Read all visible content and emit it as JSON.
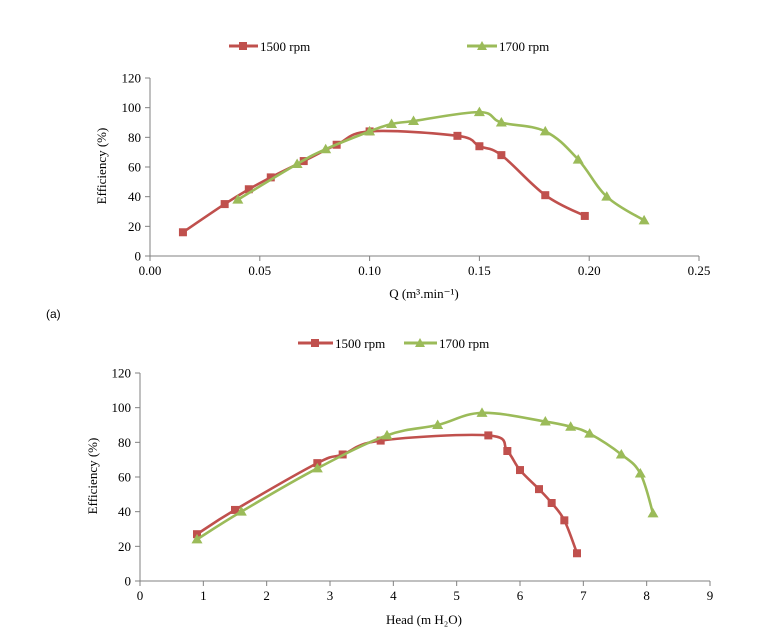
{
  "colors": {
    "series_1500": "#C0504D",
    "series_1700": "#9BBB59",
    "axis": "#808080"
  },
  "chart_data": [
    {
      "type": "line",
      "panel_label": "(a)",
      "title": "",
      "xlabel": "Q (m³.min⁻¹)",
      "ylabel": "Efficiency (%)",
      "xlim": [
        0,
        0.25
      ],
      "ylim": [
        0,
        120
      ],
      "xticks": [
        0,
        0.05,
        0.1,
        0.15,
        0.2,
        0.25
      ],
      "xtick_labels": [
        "0.00",
        "0.05",
        "0.10",
        "0.15",
        "0.20",
        "0.25"
      ],
      "yticks": [
        0,
        20,
        40,
        60,
        80,
        100,
        120
      ],
      "ytick_labels": [
        "0",
        "20",
        "40",
        "60",
        "80",
        "100",
        "120"
      ],
      "legend": "top",
      "series": [
        {
          "name": "1500 rpm",
          "marker": "square",
          "color": "#C0504D",
          "x": [
            0.015,
            0.034,
            0.045,
            0.055,
            0.07,
            0.085,
            0.1,
            0.14,
            0.15,
            0.16,
            0.18,
            0.198
          ],
          "y": [
            16,
            35,
            45,
            53,
            64,
            75,
            84,
            81,
            74,
            68,
            41,
            27
          ]
        },
        {
          "name": "1700 rpm",
          "marker": "triangle",
          "color": "#9BBB59",
          "x": [
            0.04,
            0.067,
            0.08,
            0.1,
            0.11,
            0.12,
            0.15,
            0.16,
            0.18,
            0.195,
            0.208,
            0.225
          ],
          "y": [
            38,
            62,
            72,
            84,
            89,
            91,
            97,
            90,
            84,
            65,
            40,
            24
          ]
        }
      ]
    },
    {
      "type": "line",
      "title": "",
      "xlabel": "Head (m H₂O)",
      "ylabel": "Efficiency (%)",
      "xlim": [
        0,
        9
      ],
      "ylim": [
        0,
        120
      ],
      "xticks": [
        0,
        1,
        2,
        3,
        4,
        5,
        6,
        7,
        8,
        9
      ],
      "xtick_labels": [
        "0",
        "1",
        "2",
        "3",
        "4",
        "5",
        "6",
        "7",
        "8",
        "9"
      ],
      "yticks": [
        0,
        20,
        40,
        60,
        80,
        100,
        120
      ],
      "ytick_labels": [
        "0",
        "20",
        "40",
        "60",
        "80",
        "100",
        "120"
      ],
      "legend": "top",
      "series": [
        {
          "name": "1500 rpm",
          "marker": "square",
          "color": "#C0504D",
          "x": [
            0.9,
            1.5,
            2.8,
            3.2,
            3.8,
            5.5,
            5.8,
            6.0,
            6.3,
            6.5,
            6.7,
            6.9
          ],
          "y": [
            27,
            41,
            68,
            73,
            81,
            84,
            75,
            64,
            53,
            45,
            35,
            16
          ]
        },
        {
          "name": "1700 rpm",
          "marker": "triangle",
          "color": "#9BBB59",
          "x": [
            0.9,
            1.6,
            2.8,
            3.9,
            4.7,
            5.4,
            6.4,
            6.8,
            7.1,
            7.6,
            7.9,
            8.1
          ],
          "y": [
            24,
            40,
            65,
            84,
            90,
            97,
            92,
            89,
            85,
            73,
            62,
            39
          ]
        }
      ]
    }
  ]
}
